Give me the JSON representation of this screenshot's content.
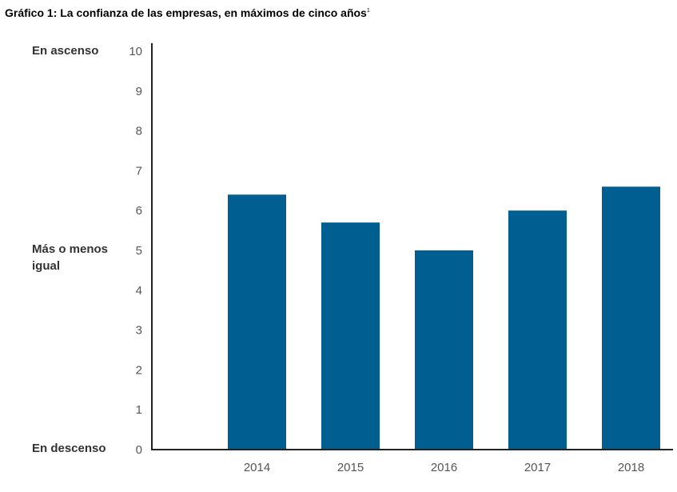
{
  "chart_data": {
    "type": "bar",
    "title": "Gráfico 1: La confianza de las empresas, en máximos de cinco años",
    "title_footnote": "1",
    "categories": [
      "2014",
      "2015",
      "2016",
      "2017",
      "2018"
    ],
    "values": [
      6.4,
      5.7,
      5.0,
      6.0,
      6.6
    ],
    "ylim": [
      0,
      10
    ],
    "yticks": [
      0,
      1,
      2,
      3,
      4,
      5,
      6,
      7,
      8,
      9,
      10
    ],
    "xlabel": "",
    "ylabel": "",
    "level_labels": {
      "top": "En ascenso",
      "middle_line1": "Más o menos",
      "middle_line2": "igual",
      "bottom": "En descenso"
    },
    "grid": false,
    "bar_color": "#005e91",
    "axis_color": "#222222"
  }
}
